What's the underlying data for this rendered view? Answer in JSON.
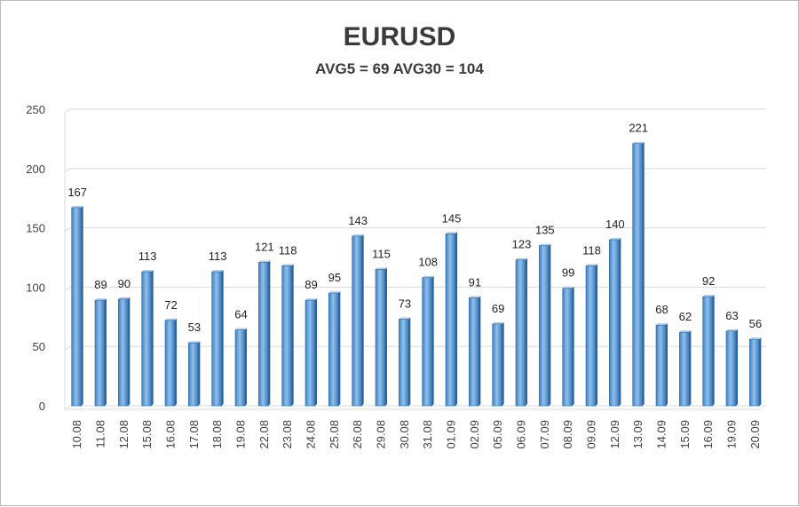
{
  "chart_data": {
    "type": "bar",
    "title": "EURUSD",
    "subtitle": "AVG5 = 69 AVG30 = 104",
    "xlabel": "",
    "ylabel": "",
    "ylim": [
      0,
      250
    ],
    "yticks": [
      0,
      50,
      100,
      150,
      200,
      250
    ],
    "grid": true,
    "legend": "none",
    "bar_color": "#5b9bd5",
    "categories": [
      "10.08",
      "11.08",
      "12.08",
      "15.08",
      "16.08",
      "17.08",
      "18.08",
      "19.08",
      "22.08",
      "23.08",
      "24.08",
      "25.08",
      "26.08",
      "29.08",
      "30.08",
      "31.08",
      "01.09",
      "02.09",
      "05.09",
      "06.09",
      "07.09",
      "08.09",
      "09.09",
      "12.09",
      "13.09",
      "14.09",
      "15.09",
      "16.09",
      "19.09",
      "20.09"
    ],
    "values": [
      167,
      89,
      90,
      113,
      72,
      53,
      113,
      64,
      121,
      118,
      89,
      95,
      143,
      115,
      73,
      108,
      145,
      91,
      69,
      123,
      135,
      99,
      118,
      140,
      221,
      68,
      62,
      92,
      63,
      56
    ]
  }
}
